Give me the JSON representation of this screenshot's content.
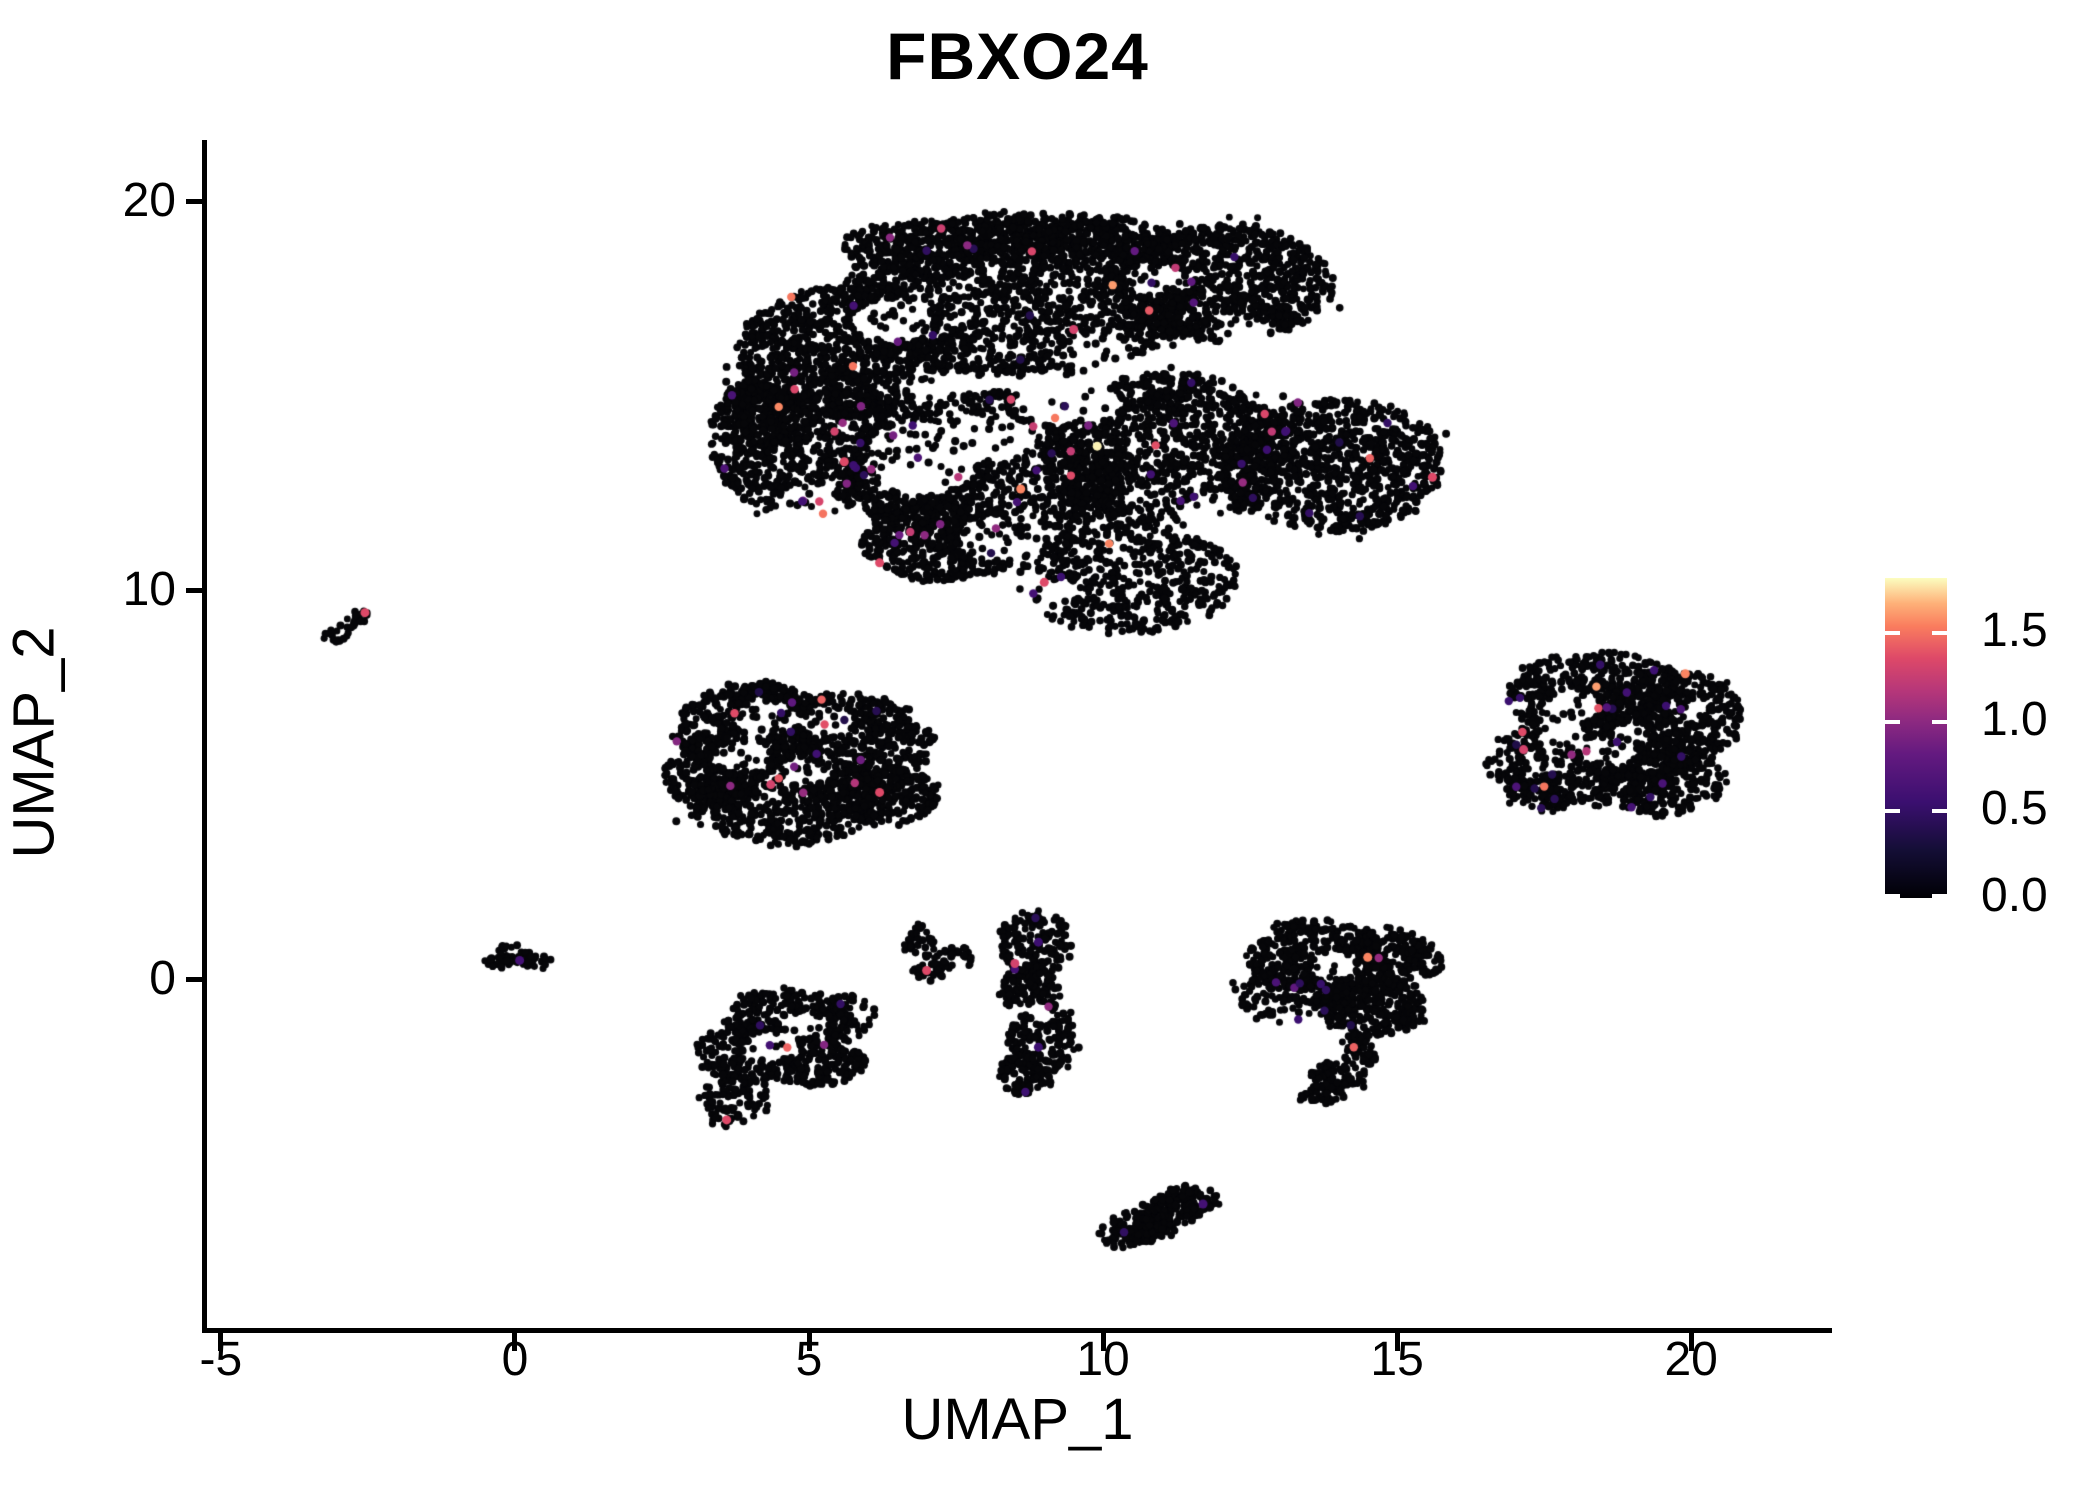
{
  "title": "FBXO24",
  "chart_data": {
    "type": "scatter",
    "title": "FBXO24",
    "xlabel": "UMAP_1",
    "ylabel": "UMAP_2",
    "xlim": [
      -5.27,
      22.36
    ],
    "ylim": [
      -9.02,
      21.57
    ],
    "x_ticks": [
      -5,
      0,
      5,
      10,
      15,
      20
    ],
    "y_ticks": [
      0,
      10,
      20
    ],
    "grid": false,
    "legend_position": "right",
    "point_color_zero": "#060609",
    "colorbar": {
      "min": 0.0,
      "max": 1.8,
      "tick_labels": [
        "0.0",
        "0.5",
        "1.0",
        "1.5"
      ],
      "tick_values": [
        0.0,
        0.5,
        1.0,
        1.5
      ],
      "colormap": "magma",
      "stops": [
        [
          0.0,
          "#000004"
        ],
        [
          0.15,
          "#140e36"
        ],
        [
          0.3,
          "#3b0f70"
        ],
        [
          0.45,
          "#641a80"
        ],
        [
          0.55,
          "#8c2981"
        ],
        [
          0.65,
          "#b73779"
        ],
        [
          0.75,
          "#de4968"
        ],
        [
          0.85,
          "#fa7d5e"
        ],
        [
          0.92,
          "#feb078"
        ],
        [
          1.0,
          "#fcfdbf"
        ]
      ]
    },
    "clusters": [
      {
        "name": "main-upper-blob",
        "n": 9200,
        "colored_n": 85,
        "blobs": [
          [
            8.6,
            17.6,
            3.0,
            2.1,
            10
          ],
          [
            12.0,
            17.9,
            1.9,
            1.5,
            6
          ],
          [
            5.6,
            16.1,
            1.8,
            1.7,
            6
          ],
          [
            4.9,
            13.9,
            1.6,
            2.0,
            5
          ],
          [
            8.0,
            13.1,
            2.4,
            2.0,
            8
          ],
          [
            11.1,
            13.6,
            2.1,
            2.0,
            7
          ],
          [
            13.9,
            13.2,
            1.9,
            1.7,
            6
          ],
          [
            10.4,
            10.3,
            1.9,
            1.4,
            4
          ],
          [
            7.3,
            11.3,
            1.4,
            1.1,
            3
          ],
          [
            4.1,
            14.4,
            0.6,
            0.95,
            1.2
          ],
          [
            9.4,
            19.0,
            1.9,
            0.65,
            2
          ],
          [
            6.8,
            18.8,
            1.2,
            0.7,
            1.5
          ]
        ],
        "holes": [
          [
            6.9,
            13.4,
            1.0,
            0.95
          ],
          [
            8.1,
            13.9,
            0.95,
            0.55
          ],
          [
            9.4,
            14.8,
            0.95,
            0.55
          ],
          [
            6.4,
            16.9,
            0.7,
            0.6
          ],
          [
            9.9,
            16.1,
            0.55,
            0.5
          ],
          [
            8.3,
            11.4,
            0.75,
            0.55
          ],
          [
            5.0,
            12.1,
            0.55,
            0.65
          ],
          [
            9.0,
            9.95,
            0.6,
            0.5
          ],
          [
            12.5,
            16.5,
            0.5,
            0.45
          ],
          [
            10.9,
            18.0,
            0.55,
            0.4
          ],
          [
            11.8,
            12.0,
            0.5,
            0.45
          ],
          [
            7.0,
            15.2,
            0.5,
            0.4
          ]
        ]
      },
      {
        "name": "far-left-streak",
        "n": 32,
        "colored_n": 0,
        "blobs": [
          [
            -3.1,
            8.8,
            0.2,
            0.16,
            1
          ],
          [
            -2.95,
            9.0,
            0.18,
            0.15,
            1
          ],
          [
            -2.8,
            9.15,
            0.16,
            0.13,
            1
          ],
          [
            -2.62,
            9.32,
            0.14,
            0.12,
            0.8
          ]
        ],
        "holes": []
      },
      {
        "name": "mid-left-cluster",
        "n": 2100,
        "colored_n": 17,
        "blobs": [
          [
            4.1,
            6.4,
            1.4,
            1.15,
            5
          ],
          [
            5.6,
            6.0,
            1.5,
            1.35,
            6
          ],
          [
            4.6,
            4.6,
            1.7,
            1.15,
            5
          ],
          [
            3.4,
            5.3,
            0.85,
            0.95,
            2
          ],
          [
            4.1,
            7.3,
            0.6,
            0.35,
            0.7
          ],
          [
            6.4,
            4.7,
            0.8,
            0.75,
            2
          ]
        ],
        "holes": [
          [
            4.3,
            6.7,
            0.55,
            0.45
          ],
          [
            3.9,
            5.7,
            0.5,
            0.4
          ],
          [
            5.3,
            6.6,
            0.45,
            0.4
          ],
          [
            4.9,
            5.35,
            0.5,
            0.35
          ]
        ]
      },
      {
        "name": "right-cluster",
        "n": 1700,
        "colored_n": 26,
        "blobs": [
          [
            18.4,
            7.3,
            1.5,
            1.15,
            5
          ],
          [
            19.6,
            6.7,
            1.25,
            1.3,
            5
          ],
          [
            18.2,
            5.6,
            1.65,
            1.2,
            5
          ],
          [
            19.4,
            5.1,
            1.2,
            0.9,
            3
          ],
          [
            17.5,
            4.8,
            0.6,
            0.5,
            1
          ]
        ],
        "holes": [
          [
            18.0,
            7.0,
            0.45,
            0.4
          ],
          [
            18.6,
            5.9,
            0.5,
            0.35
          ],
          [
            17.8,
            6.35,
            0.4,
            0.3
          ],
          [
            19.0,
            6.3,
            0.35,
            0.3
          ]
        ]
      },
      {
        "name": "origin-blob",
        "n": 78,
        "colored_n": 0,
        "blobs": [
          [
            -0.05,
            0.62,
            0.38,
            0.25,
            2
          ],
          [
            0.3,
            0.45,
            0.32,
            0.18,
            1
          ],
          [
            -0.28,
            0.45,
            0.2,
            0.15,
            0.7
          ]
        ],
        "holes": []
      },
      {
        "name": "lower-left-cluster",
        "n": 800,
        "colored_n": 5,
        "blobs": [
          [
            4.6,
            -1.05,
            1.15,
            0.8,
            4
          ],
          [
            4.0,
            -1.9,
            0.95,
            0.75,
            3
          ],
          [
            5.1,
            -2.1,
            0.85,
            0.65,
            2
          ],
          [
            3.75,
            -3.0,
            0.6,
            0.55,
            1.2
          ],
          [
            3.6,
            -3.55,
            0.3,
            0.25,
            0.4
          ],
          [
            5.6,
            -1.0,
            0.5,
            0.6,
            1
          ]
        ],
        "holes": [
          [
            4.4,
            -1.7,
            0.45,
            0.4
          ],
          [
            4.9,
            -1.2,
            0.4,
            0.3
          ]
        ]
      },
      {
        "name": "small-bits-cluster",
        "n": 95,
        "colored_n": 0,
        "blobs": [
          [
            6.9,
            0.95,
            0.3,
            0.45,
            2
          ],
          [
            7.05,
            0.25,
            0.3,
            0.3,
            1.5
          ],
          [
            7.5,
            0.55,
            0.3,
            0.3,
            1
          ]
        ],
        "holes": []
      },
      {
        "name": "vertical-cluster",
        "n": 560,
        "colored_n": 4,
        "blobs": [
          [
            8.85,
            0.9,
            0.6,
            0.85,
            3
          ],
          [
            8.75,
            -0.35,
            0.5,
            0.75,
            2.5
          ],
          [
            9.0,
            -1.5,
            0.6,
            0.95,
            3
          ],
          [
            8.7,
            -2.45,
            0.45,
            0.55,
            1.5
          ]
        ],
        "holes": [
          [
            8.8,
            -0.9,
            0.35,
            0.3
          ]
        ]
      },
      {
        "name": "lower-right-cluster",
        "n": 1250,
        "colored_n": 10,
        "blobs": [
          [
            13.6,
            0.6,
            1.15,
            0.95,
            4
          ],
          [
            14.8,
            0.45,
            0.95,
            0.85,
            3
          ],
          [
            13.3,
            -0.4,
            1.05,
            0.8,
            3
          ],
          [
            14.6,
            -0.75,
            0.95,
            0.7,
            3
          ],
          [
            14.35,
            -1.8,
            0.3,
            0.45,
            0.6
          ],
          [
            14.05,
            -2.5,
            0.5,
            0.4,
            0.8
          ],
          [
            13.7,
            -2.95,
            0.45,
            0.22,
            0.5
          ]
        ],
        "holes": [
          [
            14.0,
            0.3,
            0.45,
            0.4
          ],
          [
            13.4,
            -1.0,
            0.4,
            0.3
          ]
        ]
      },
      {
        "name": "bottom-oval-cluster",
        "n": 300,
        "colored_n": 1,
        "blobs": [
          [
            10.7,
            -6.35,
            0.55,
            0.4,
            2
          ],
          [
            11.1,
            -6.0,
            0.55,
            0.4,
            2
          ],
          [
            11.5,
            -5.65,
            0.5,
            0.35,
            1.5
          ],
          [
            10.35,
            -6.6,
            0.4,
            0.3,
            1
          ]
        ],
        "holes": []
      }
    ],
    "featured_points": [
      [
        -2.55,
        9.42,
        1.35
      ],
      [
        0.08,
        0.48,
        0.6
      ],
      [
        7.0,
        0.22,
        1.35
      ],
      [
        9.9,
        13.7,
        1.78
      ],
      [
        8.6,
        12.6,
        1.55
      ],
      [
        5.6,
        13.3,
        1.35
      ],
      [
        6.2,
        10.7,
        1.35
      ],
      [
        9.0,
        10.2,
        1.35
      ],
      [
        15.6,
        12.9,
        1.35
      ],
      [
        9.5,
        16.7,
        1.3
      ],
      [
        19.9,
        7.85,
        1.55
      ],
      [
        14.5,
        0.56,
        1.55
      ],
      [
        3.6,
        -3.62,
        1.35
      ],
      [
        6.2,
        4.8,
        1.35
      ],
      [
        4.35,
        5.0,
        1.3
      ],
      [
        11.7,
        -5.78,
        0.6
      ],
      [
        17.15,
        5.9,
        1.3
      ],
      [
        8.9,
        0.95,
        0.55
      ],
      [
        8.5,
        0.4,
        1.3
      ],
      [
        8.9,
        -1.75,
        0.55
      ]
    ]
  }
}
